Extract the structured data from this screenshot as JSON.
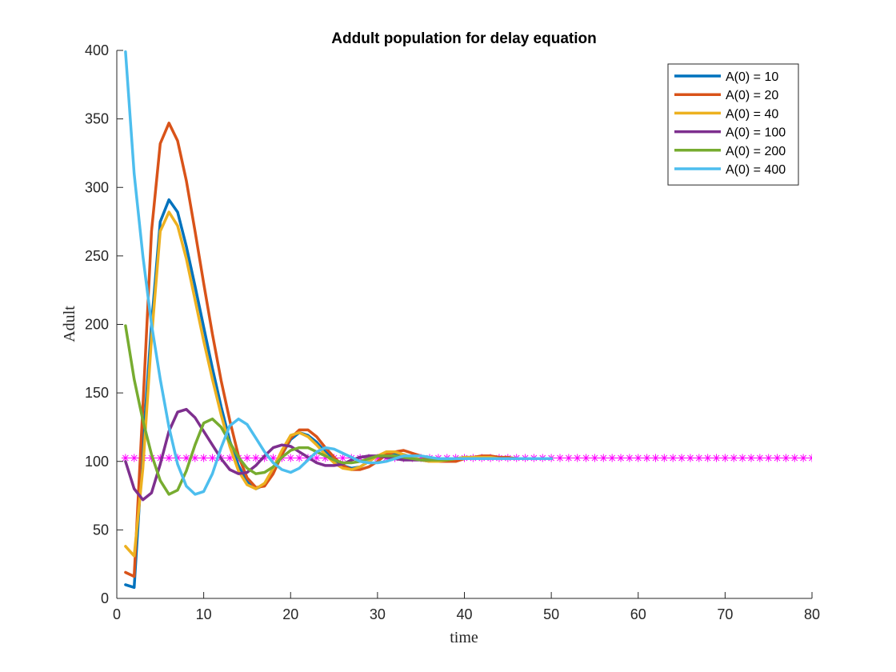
{
  "chart_data": {
    "type": "line",
    "title": "Addult population for delay equation",
    "xlabel": "time",
    "ylabel": "Adult",
    "xlim": [
      0,
      80
    ],
    "ylim": [
      0,
      400
    ],
    "xticks": [
      "0",
      "10",
      "20",
      "30",
      "40",
      "50",
      "60",
      "70",
      "80"
    ],
    "yticks": [
      "0",
      "50",
      "100",
      "150",
      "200",
      "250",
      "300",
      "350",
      "400"
    ],
    "grid": false,
    "legend_position": "top-right",
    "series": [
      {
        "name": "A(0) = 10",
        "color": "#0072BD",
        "x": [
          1,
          2,
          3,
          4,
          5,
          6,
          7,
          8,
          9,
          10,
          11,
          12,
          13,
          14,
          15,
          16,
          17,
          18,
          19,
          20,
          21,
          22,
          23,
          24,
          25,
          26,
          27,
          28,
          29,
          30,
          31,
          32,
          33,
          34,
          35,
          36,
          37,
          38,
          39,
          40,
          41,
          42,
          43,
          44,
          45,
          46,
          47,
          48,
          49,
          50
        ],
        "y": [
          10,
          8,
          110,
          200,
          275,
          291,
          282,
          257,
          228,
          198,
          168,
          140,
          115,
          97,
          85,
          80,
          83,
          93,
          105,
          116,
          121,
          119,
          114,
          107,
          101,
          97,
          95,
          96,
          100,
          104,
          106,
          106,
          105,
          103,
          101,
          100,
          100,
          101,
          102,
          103,
          103,
          103,
          103,
          103,
          102,
          102,
          102,
          102,
          102,
          102
        ]
      },
      {
        "name": "A(0) = 20",
        "color": "#D95319",
        "x": [
          1,
          2,
          3,
          4,
          5,
          6,
          7,
          8,
          9,
          10,
          11,
          12,
          13,
          14,
          15,
          16,
          17,
          18,
          19,
          20,
          21,
          22,
          23,
          24,
          25,
          26,
          27,
          28,
          29,
          30,
          31,
          32,
          33,
          34,
          35,
          36,
          37,
          38,
          39,
          40,
          41,
          42,
          43,
          44,
          45,
          46,
          47,
          48,
          49,
          50
        ],
        "y": [
          19,
          16,
          140,
          268,
          332,
          347,
          334,
          305,
          268,
          230,
          193,
          159,
          130,
          104,
          88,
          81,
          82,
          91,
          105,
          117,
          123,
          123,
          118,
          110,
          103,
          97,
          94,
          94,
          96,
          100,
          105,
          107,
          108,
          106,
          104,
          101,
          100,
          100,
          100,
          102,
          103,
          104,
          104,
          103,
          103,
          102,
          102,
          102,
          102,
          102
        ]
      },
      {
        "name": "A(0) = 40",
        "color": "#EDB120",
        "x": [
          1,
          2,
          3,
          4,
          5,
          6,
          7,
          8,
          9,
          10,
          11,
          12,
          13,
          14,
          15,
          16,
          17,
          18,
          19,
          20,
          21,
          22,
          23,
          24,
          25,
          26,
          27,
          28,
          29,
          30,
          31,
          32,
          33,
          34,
          35,
          36,
          37,
          38,
          39,
          40,
          41,
          42,
          43,
          44,
          45,
          46,
          47,
          48,
          49,
          50
        ],
        "y": [
          38,
          31,
          95,
          190,
          268,
          282,
          272,
          248,
          218,
          188,
          160,
          134,
          111,
          93,
          83,
          80,
          84,
          95,
          108,
          119,
          121,
          118,
          112,
          105,
          99,
          95,
          94,
          96,
          100,
          104,
          107,
          107,
          105,
          103,
          101,
          100,
          100,
          101,
          102,
          103,
          103,
          103,
          103,
          102,
          102,
          102,
          102,
          102,
          102,
          102
        ]
      },
      {
        "name": "A(0) = 100",
        "color": "#7E2F8E",
        "x": [
          1,
          2,
          3,
          4,
          5,
          6,
          7,
          8,
          9,
          10,
          11,
          12,
          13,
          14,
          15,
          16,
          17,
          18,
          19,
          20,
          21,
          22,
          23,
          24,
          25,
          26,
          27,
          28,
          29,
          30,
          31,
          32,
          33,
          34,
          35,
          36,
          37,
          38,
          39,
          40,
          41,
          42,
          43,
          44,
          45,
          46,
          47,
          48,
          49,
          50
        ],
        "y": [
          100,
          80,
          72,
          77,
          98,
          122,
          136,
          138,
          132,
          122,
          112,
          102,
          94,
          91,
          92,
          97,
          104,
          110,
          112,
          111,
          107,
          103,
          99,
          97,
          97,
          98,
          101,
          103,
          104,
          104,
          103,
          102,
          101,
          101,
          101,
          101,
          102,
          102,
          102,
          102,
          102,
          102,
          102,
          102,
          102,
          102,
          102,
          102,
          102,
          102
        ]
      },
      {
        "name": "A(0) = 200",
        "color": "#77AC30",
        "x": [
          1,
          2,
          3,
          4,
          5,
          6,
          7,
          8,
          9,
          10,
          11,
          12,
          13,
          14,
          15,
          16,
          17,
          18,
          19,
          20,
          21,
          22,
          23,
          24,
          25,
          26,
          27,
          28,
          29,
          30,
          31,
          32,
          33,
          34,
          35,
          36,
          37,
          38,
          39,
          40,
          41,
          42,
          43,
          44,
          45,
          46,
          47,
          48,
          49,
          50
        ],
        "y": [
          199,
          160,
          130,
          105,
          86,
          76,
          79,
          93,
          112,
          128,
          131,
          125,
          114,
          103,
          95,
          91,
          92,
          96,
          103,
          108,
          110,
          110,
          107,
          104,
          101,
          99,
          99,
          100,
          102,
          104,
          104,
          104,
          103,
          102,
          101,
          101,
          101,
          101,
          102,
          102,
          102,
          102,
          102,
          102,
          102,
          102,
          102,
          102,
          102,
          102
        ]
      },
      {
        "name": "A(0) = 400",
        "color": "#4DBEEE",
        "x": [
          1,
          2,
          3,
          4,
          5,
          6,
          7,
          8,
          9,
          10,
          11,
          12,
          13,
          14,
          15,
          16,
          17,
          18,
          19,
          20,
          21,
          22,
          23,
          24,
          25,
          26,
          27,
          28,
          29,
          30,
          31,
          32,
          33,
          34,
          35,
          36,
          37,
          38,
          39,
          40,
          41,
          42,
          43,
          44,
          45,
          46,
          47,
          48,
          49,
          50
        ],
        "y": [
          399,
          310,
          250,
          200,
          160,
          125,
          98,
          82,
          76,
          78,
          91,
          110,
          126,
          131,
          127,
          117,
          107,
          99,
          94,
          92,
          95,
          101,
          107,
          110,
          109,
          106,
          103,
          100,
          99,
          99,
          100,
          102,
          104,
          104,
          104,
          103,
          102,
          102,
          102,
          102,
          102,
          102,
          102,
          102,
          102,
          102,
          102,
          102,
          102,
          102
        ]
      }
    ],
    "equilibrium": {
      "color": "#FF00FF",
      "marker": "asterisk",
      "value": 102.5,
      "x_start": 1,
      "x_end": 80
    }
  }
}
